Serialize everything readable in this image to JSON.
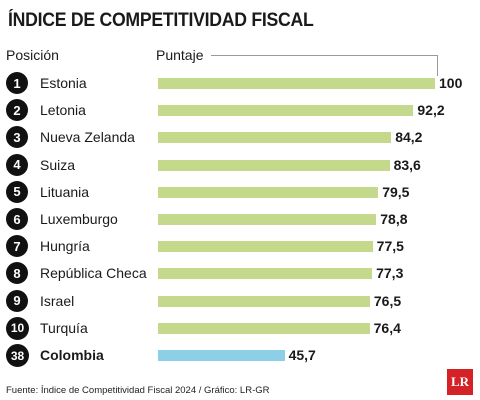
{
  "title": "ÍNDICE DE COMPETITIVIDAD FISCAL",
  "header": {
    "position_label": "Posición",
    "score_label": "Puntaje"
  },
  "colors": {
    "bar": "#c5d98c",
    "highlight_bar": "#8ecfe8",
    "logo": "#d42227"
  },
  "chart_data": {
    "type": "bar",
    "orientation": "horizontal",
    "categories": [
      "Estonia",
      "Letonia",
      "Nueva Zelanda",
      "Suiza",
      "Lituania",
      "Luxemburgo",
      "Hungría",
      "República Checa",
      "Israel",
      "Turquía",
      "Colombia"
    ],
    "ranks": [
      "1",
      "2",
      "3",
      "4",
      "5",
      "6",
      "7",
      "8",
      "9",
      "10",
      "38"
    ],
    "values": [
      100,
      92.2,
      84.2,
      83.6,
      79.5,
      78.8,
      77.5,
      77.3,
      76.5,
      76.4,
      45.7
    ],
    "value_labels": [
      "100",
      "92,2",
      "84,2",
      "83,6",
      "79,5",
      "78,8",
      "77,5",
      "77,3",
      "76,5",
      "76,4",
      "45,7"
    ],
    "highlight": "Colombia",
    "xlim": [
      0,
      100
    ],
    "grid": false,
    "legend": "none"
  },
  "footer": "Fuente: Índice de Competitividad Fiscal 2024 / Gráfico: LR-GR",
  "logo": {
    "text": "LR"
  }
}
